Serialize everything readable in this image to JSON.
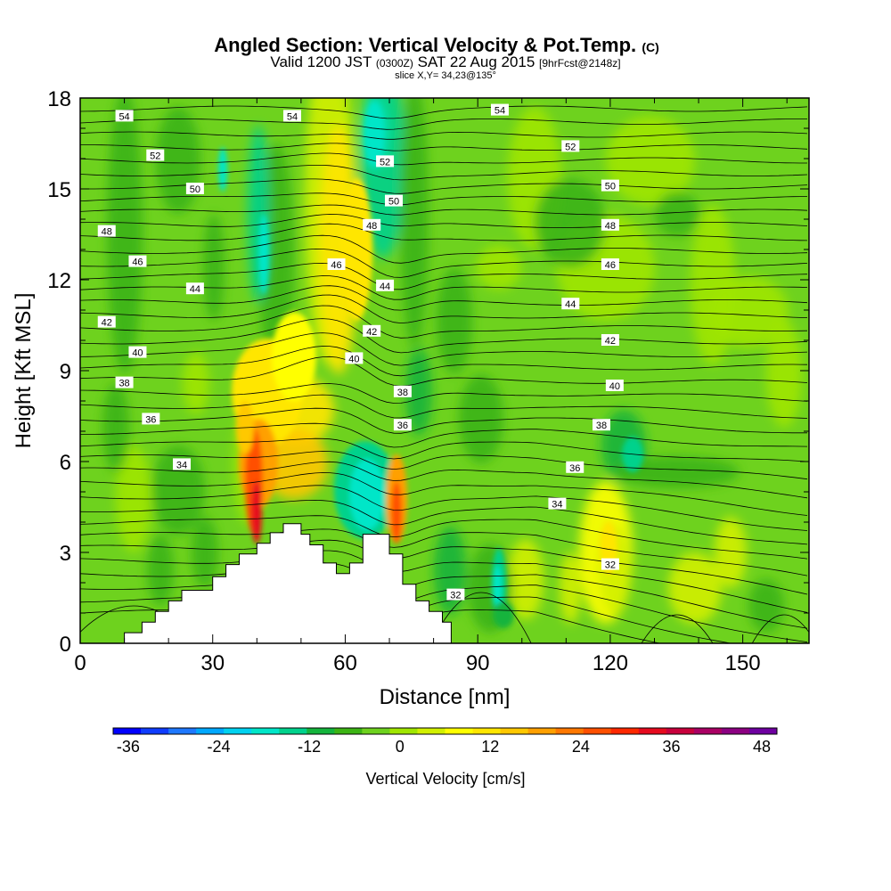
{
  "title": {
    "main": "Angled Section: Vertical Velocity & Pot.Temp.",
    "main_unit": "(C)",
    "valid_prefix": "Valid 1200 JST",
    "valid_z": "(0300Z)",
    "valid_date": "SAT 22 Aug 2015",
    "valid_fcst": "[9hrFcst@2148z]",
    "slice": "slice X,Y= 34,23@135°"
  },
  "chart_data": {
    "type": "heatmap",
    "title": "Angled Section: Vertical Velocity & Pot.Temp. (C)",
    "xlabel": "Distance [nm]",
    "ylabel": "Height [Kft MSL]",
    "xlim": [
      0,
      165
    ],
    "ylim": [
      0,
      18
    ],
    "x_ticks": [
      "0",
      "30",
      "60",
      "90",
      "120",
      "150"
    ],
    "x_tick_values": [
      0,
      30,
      60,
      90,
      120,
      150
    ],
    "y_ticks": [
      "0",
      "3",
      "6",
      "9",
      "12",
      "15",
      "18"
    ],
    "y_tick_values": [
      0,
      3,
      6,
      9,
      12,
      15,
      18
    ],
    "colorbar": {
      "label": "Vertical Velocity [cm/s]",
      "tick_labels": [
        "-36",
        "-24",
        "-12",
        "0",
        "12",
        "24",
        "36",
        "48"
      ],
      "tick_values": [
        -36,
        -24,
        -12,
        0,
        12,
        24,
        36,
        48
      ],
      "range": [
        -38,
        50
      ],
      "colors": [
        "#0000ff",
        "#0f3cff",
        "#1e78ff",
        "#00a8ff",
        "#00d2f0",
        "#00e6c8",
        "#00d28c",
        "#14b43c",
        "#3cb414",
        "#6ed21e",
        "#a0e600",
        "#d2f000",
        "#ffff00",
        "#ffe600",
        "#ffc800",
        "#ffa000",
        "#ff7800",
        "#ff5000",
        "#ff2800",
        "#e60a1e",
        "#c8003c",
        "#aa0064",
        "#8c0082",
        "#6e00a0"
      ]
    },
    "terrain_profile": {
      "x": [
        0,
        10,
        10,
        14,
        14,
        17,
        17,
        20,
        20,
        23,
        23,
        30,
        30,
        33,
        33,
        36,
        36,
        40,
        40,
        43,
        43,
        46,
        46,
        50,
        50,
        52,
        52,
        55,
        55,
        58,
        58,
        61,
        61,
        64,
        64,
        70,
        70,
        73,
        73,
        76,
        76,
        79,
        79,
        82,
        82,
        84,
        84,
        165
      ],
      "y": [
        0,
        0,
        0.35,
        0.35,
        0.7,
        0.7,
        1.05,
        1.05,
        1.4,
        1.4,
        1.75,
        1.75,
        2.2,
        2.2,
        2.6,
        2.6,
        2.95,
        2.95,
        3.3,
        3.3,
        3.65,
        3.65,
        3.95,
        3.95,
        3.6,
        3.6,
        3.25,
        3.25,
        2.65,
        2.65,
        2.3,
        2.3,
        2.65,
        2.65,
        3.6,
        3.6,
        2.95,
        2.95,
        1.95,
        1.95,
        1.4,
        1.4,
        1.05,
        1.05,
        0.7,
        0.7,
        0,
        0
      ]
    },
    "theta_contours": {
      "levels": [
        32,
        34,
        36,
        38,
        40,
        42,
        44,
        46,
        48,
        50,
        52,
        54
      ],
      "labels": [
        {
          "text": "54",
          "x": 10,
          "y": 17.4
        },
        {
          "text": "54",
          "x": 48,
          "y": 17.4
        },
        {
          "text": "54",
          "x": 95,
          "y": 17.6
        },
        {
          "text": "52",
          "x": 17,
          "y": 16.1
        },
        {
          "text": "52",
          "x": 69,
          "y": 15.9
        },
        {
          "text": "52",
          "x": 111,
          "y": 16.4
        },
        {
          "text": "50",
          "x": 26,
          "y": 15.0
        },
        {
          "text": "50",
          "x": 71,
          "y": 14.6
        },
        {
          "text": "50",
          "x": 120,
          "y": 15.1
        },
        {
          "text": "48",
          "x": 6,
          "y": 13.6
        },
        {
          "text": "48",
          "x": 66,
          "y": 13.8
        },
        {
          "text": "48",
          "x": 120,
          "y": 13.8
        },
        {
          "text": "46",
          "x": 13,
          "y": 12.6
        },
        {
          "text": "46",
          "x": 58,
          "y": 12.5
        },
        {
          "text": "46",
          "x": 120,
          "y": 12.5
        },
        {
          "text": "44",
          "x": 26,
          "y": 11.7
        },
        {
          "text": "44",
          "x": 69,
          "y": 11.8
        },
        {
          "text": "44",
          "x": 111,
          "y": 11.2
        },
        {
          "text": "42",
          "x": 6,
          "y": 10.6
        },
        {
          "text": "42",
          "x": 66,
          "y": 10.3
        },
        {
          "text": "42",
          "x": 120,
          "y": 10.0
        },
        {
          "text": "40",
          "x": 13,
          "y": 9.6
        },
        {
          "text": "40",
          "x": 62,
          "y": 9.4
        },
        {
          "text": "40",
          "x": 121,
          "y": 8.5
        },
        {
          "text": "38",
          "x": 10,
          "y": 8.6
        },
        {
          "text": "38",
          "x": 73,
          "y": 8.3
        },
        {
          "text": "38",
          "x": 118,
          "y": 7.2
        },
        {
          "text": "36",
          "x": 16,
          "y": 7.4
        },
        {
          "text": "36",
          "x": 73,
          "y": 7.2
        },
        {
          "text": "36",
          "x": 112,
          "y": 5.8
        },
        {
          "text": "34",
          "x": 23,
          "y": 5.9
        },
        {
          "text": "34",
          "x": 108,
          "y": 4.6
        },
        {
          "text": "32",
          "x": 85,
          "y": 1.6
        },
        {
          "text": "32",
          "x": 120,
          "y": 2.6
        }
      ]
    }
  }
}
